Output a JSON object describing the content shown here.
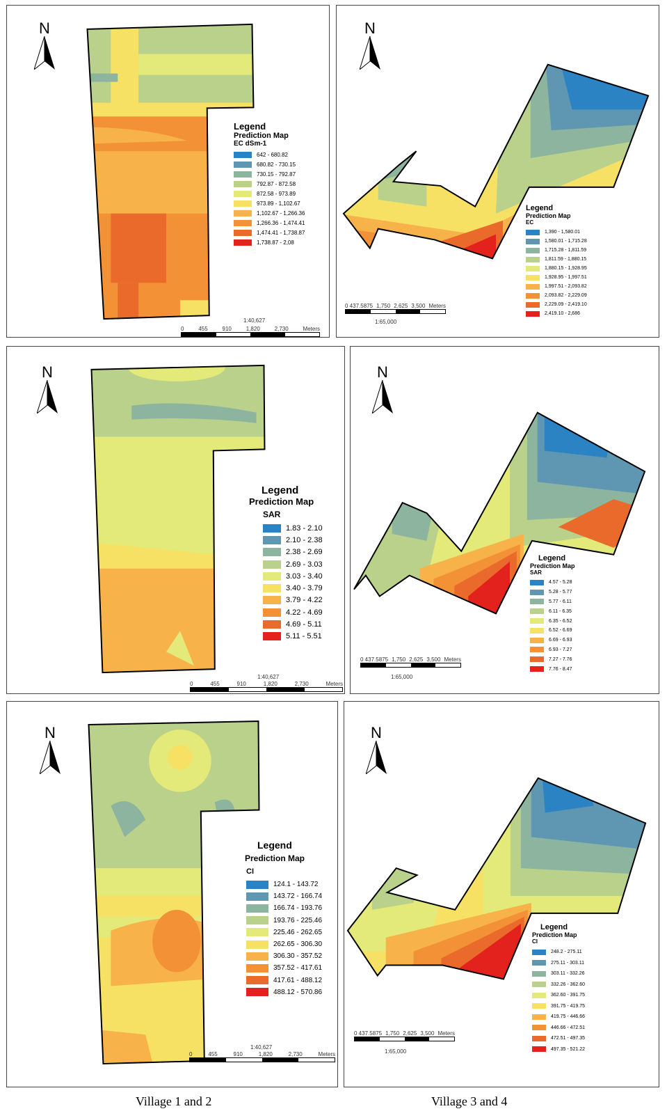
{
  "north_label": "N",
  "legend_title": "Legend",
  "legend_subtitle": "Prediction Map",
  "units_label": "Meters",
  "captions": {
    "left": "Village 1 and 2",
    "right": "Village 3 and 4"
  },
  "scale_left": {
    "ratio": "1:40,627",
    "ticks": [
      "0",
      "455",
      "910",
      "1,820",
      "2,730"
    ]
  },
  "scale_right": {
    "ratio": "1:65,000",
    "ticks": [
      "0 437.5875",
      "1,750",
      "2,625",
      "3,500"
    ]
  },
  "colors": [
    "#2b83c4",
    "#5f97b3",
    "#8cb49e",
    "#b9d18a",
    "#e3ea7a",
    "#f7e165",
    "#f7b24a",
    "#f39137",
    "#ea6a2c",
    "#e3221d"
  ],
  "maps": [
    {
      "id": "ec-v12",
      "variable": "EC dSm-1",
      "classes": [
        "642 - 680.82",
        "680.82 - 730.15",
        "730.15 - 792.87",
        "792.87 - 872.58",
        "872.58 - 973.89",
        "973.89 - 1,102.67",
        "1,102.67 - 1,266.36",
        "1,266.36 - 1,474.41",
        "1,474.41 - 1,738.87",
        "1,738.87 - 2,08"
      ]
    },
    {
      "id": "ec-v34",
      "variable": "EC",
      "classes": [
        "1,390 - 1,580.01",
        "1,580.01 - 1,715.28",
        "1,715.28 - 1,811.59",
        "1,811.59 - 1,880.15",
        "1,880.15 - 1,928.95",
        "1,928.95 - 1,997.51",
        "1,997.51 - 2,093.82",
        "2,093.82 - 2,229.09",
        "2,229.09 - 2,419.10",
        "2,419.10 - 2,686"
      ]
    },
    {
      "id": "sar-v12",
      "variable": "SAR",
      "classes": [
        "1.83 - 2.10",
        "2.10 - 2.38",
        "2.38 - 2.69",
        "2.69 - 3.03",
        "3.03 - 3.40",
        "3.40 - 3.79",
        "3.79 - 4.22",
        "4.22 - 4.69",
        "4.69 - 5.11",
        "5.11 - 5.51"
      ]
    },
    {
      "id": "sar-v34",
      "variable": "SAR",
      "classes": [
        "4.57 - 5.28",
        "5.28 - 5.77",
        "5.77 - 6.11",
        "6.11 - 6.35",
        "6.35 - 6.52",
        "6.52 - 6.69",
        "6.69 - 6.93",
        "6.93 - 7.27",
        "7.27 - 7.76",
        "7.76 - 8.47"
      ]
    },
    {
      "id": "ci-v12",
      "variable": "CI",
      "classes": [
        "124.1 - 143.72",
        "143.72 - 166.74",
        "166.74 - 193.76",
        "193.76 - 225.46",
        "225.46 - 262.65",
        "262.65 - 306.30",
        "306.30 - 357.52",
        "357.52 - 417.61",
        "417.61 - 488.12",
        "488.12 - 570.86"
      ]
    },
    {
      "id": "ci-v34",
      "variable": "CI",
      "classes": [
        "248.2 - 275.11",
        "275.11 - 303.11",
        "303.11 - 332.26",
        "332.26 - 362.60",
        "362.60 - 391.75",
        "391.75 - 419.75",
        "419.75 - 446.66",
        "446.66 - 472.51",
        "472.51 - 497.35",
        "497.35 - 521.22"
      ]
    }
  ]
}
